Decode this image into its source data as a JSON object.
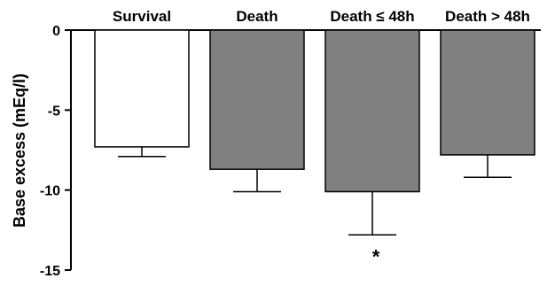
{
  "chart_data": {
    "type": "bar",
    "categories": [
      "Survival",
      "Death",
      "Death ≤ 48h",
      "Death > 48h"
    ],
    "values": [
      -7.3,
      -8.7,
      -10.1,
      -7.8
    ],
    "errors": [
      0.6,
      1.4,
      2.7,
      1.4
    ],
    "colors": [
      "#ffffff",
      "#808080",
      "#808080",
      "#808080"
    ],
    "ylabel": "Base excess (mEq/l)",
    "xlabel": "",
    "ylim": [
      -15,
      0
    ],
    "yticks": [
      0,
      -5,
      -10,
      -15
    ],
    "ytick_labels": [
      "0",
      "-5",
      "-10",
      "-15"
    ],
    "category_label_position": "top",
    "grid": false,
    "annotations": [
      {
        "text": "*",
        "category_index": 2
      }
    ]
  }
}
